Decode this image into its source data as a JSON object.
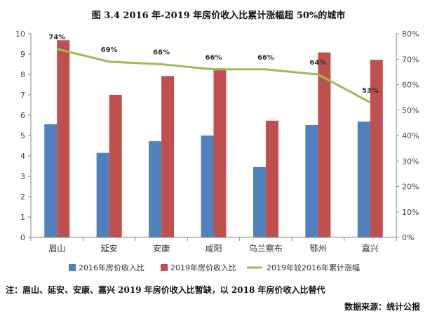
{
  "page": {
    "title": "图 3.4 2016 年-2019 年房价收入比累计涨幅超 50%的城市",
    "note": "注：眉山、延安、安康、嘉兴 2019 年房价收入比暂缺，以 2018 年房价收入比替代",
    "source": "数据来源：统计公报"
  },
  "chart_data": {
    "type": "bar",
    "title": "图 3.4 2016 年-2019 年房价收入比累计涨幅超 50%的城市",
    "categories": [
      "眉山",
      "延安",
      "安康",
      "咸阳",
      "乌兰察布",
      "鄂州",
      "嘉兴"
    ],
    "series": [
      {
        "name": "2016年房价收入比",
        "type": "bar",
        "axis": "left",
        "color": "#4f81bd",
        "values": [
          5.55,
          4.15,
          4.72,
          5.0,
          3.45,
          5.52,
          5.68
        ]
      },
      {
        "name": "2019年房价收入比",
        "type": "bar",
        "axis": "left",
        "color": "#c0504d",
        "values": [
          9.68,
          7.0,
          7.92,
          8.3,
          5.73,
          9.08,
          8.72
        ]
      },
      {
        "name": "2019年较2016年累计涨幅",
        "type": "line",
        "axis": "right",
        "color": "#9bbb59",
        "values": [
          74,
          69,
          68,
          66,
          66,
          64,
          53
        ],
        "labels": [
          "74%",
          "69%",
          "68%",
          "66%",
          "66%",
          "64%",
          "53%"
        ]
      }
    ],
    "y_left": {
      "ylim": [
        0,
        10
      ],
      "ticks": [
        "0",
        "1",
        "2",
        "3",
        "4",
        "5",
        "6",
        "7",
        "8",
        "9",
        "10"
      ]
    },
    "y_right": {
      "ylim": [
        0,
        80
      ],
      "ticks": [
        "0%",
        "10%",
        "20%",
        "30%",
        "40%",
        "50%",
        "60%",
        "70%",
        "80%"
      ]
    },
    "grid": false,
    "legend_position": "bottom"
  }
}
